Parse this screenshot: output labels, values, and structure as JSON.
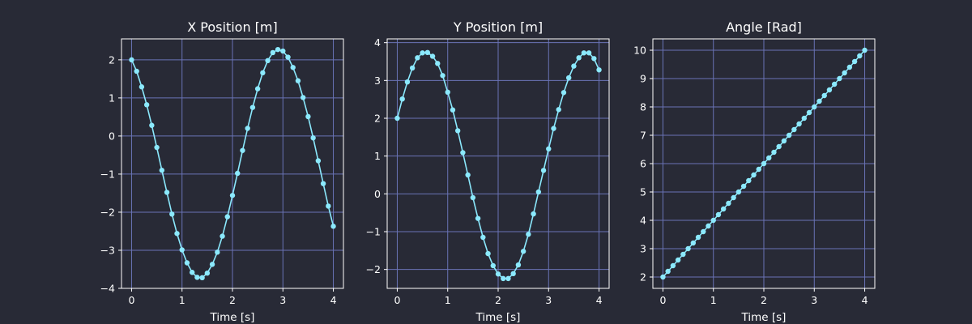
{
  "figure": {
    "background": "#282a36",
    "line_color": "#8be9fd",
    "grid_color": "#6a73b6",
    "text_color": "#ffffff"
  },
  "chart_data": [
    {
      "type": "line",
      "title": "X Position [m]",
      "xlabel": "Time [s]",
      "ylabel": "",
      "xlim": [
        -0.2,
        4.2
      ],
      "ylim": [
        -4.0,
        2.55
      ],
      "xticks": [
        0,
        1,
        2,
        3,
        4
      ],
      "xtick_labels": [
        "0",
        "1",
        "2",
        "3",
        "4"
      ],
      "yticks": [
        -4,
        -3,
        -2,
        -1,
        0,
        1,
        2
      ],
      "ytick_labels": [
        "−4",
        "−3",
        "−2",
        "−1",
        "0",
        "1",
        "2"
      ],
      "grid": true,
      "markers": true,
      "series": [
        {
          "x": [
            0.0,
            0.1,
            0.2,
            0.3,
            0.4,
            0.5,
            0.6,
            0.7,
            0.8,
            0.9,
            1.0,
            1.1,
            1.2,
            1.3,
            1.4,
            1.5,
            1.6,
            1.7,
            1.8,
            1.9,
            2.0,
            2.1,
            2.2,
            2.3,
            2.4,
            2.5,
            2.6,
            2.7,
            2.8,
            2.9,
            3.0,
            3.1,
            3.2,
            3.3,
            3.4,
            3.5,
            3.6,
            3.7,
            3.8,
            3.9,
            4.0
          ],
          "values": [
            2.0,
            1.7,
            1.29,
            0.82,
            0.28,
            -0.3,
            -0.9,
            -1.48,
            -2.05,
            -2.56,
            -2.99,
            -3.33,
            -3.58,
            -3.71,
            -3.72,
            -3.6,
            -3.37,
            -3.05,
            -2.63,
            -2.12,
            -1.56,
            -0.98,
            -0.38,
            0.2,
            0.75,
            1.24,
            1.66,
            1.98,
            2.19,
            2.27,
            2.23,
            2.07,
            1.8,
            1.45,
            1.01,
            0.51,
            -0.05,
            -0.65,
            -1.25,
            -1.84,
            -2.37
          ]
        }
      ]
    },
    {
      "type": "line",
      "title": "Y Position [m]",
      "xlabel": "Time [s]",
      "ylabel": "",
      "xlim": [
        -0.2,
        4.2
      ],
      "ylim": [
        -2.5,
        4.1
      ],
      "xticks": [
        0,
        1,
        2,
        3,
        4
      ],
      "xtick_labels": [
        "0",
        "1",
        "2",
        "3",
        "4"
      ],
      "yticks": [
        -2,
        -1,
        0,
        1,
        2,
        3,
        4
      ],
      "ytick_labels": [
        "−2",
        "−1",
        "0",
        "1",
        "2",
        "3",
        "4"
      ],
      "grid": true,
      "markers": true,
      "series": [
        {
          "x": [
            0.0,
            0.1,
            0.2,
            0.3,
            0.4,
            0.5,
            0.6,
            0.7,
            0.8,
            0.9,
            1.0,
            1.1,
            1.2,
            1.3,
            1.4,
            1.5,
            1.6,
            1.7,
            1.8,
            1.9,
            2.0,
            2.1,
            2.2,
            2.3,
            2.4,
            2.5,
            2.6,
            2.7,
            2.8,
            2.9,
            3.0,
            3.1,
            3.2,
            3.3,
            3.4,
            3.5,
            3.6,
            3.7,
            3.8,
            3.9,
            4.0
          ],
          "values": [
            2.0,
            2.51,
            2.96,
            3.33,
            3.6,
            3.73,
            3.74,
            3.64,
            3.45,
            3.13,
            2.69,
            2.22,
            1.67,
            1.09,
            0.5,
            -0.1,
            -0.65,
            -1.15,
            -1.58,
            -1.9,
            -2.12,
            -2.24,
            -2.24,
            -2.11,
            -1.88,
            -1.52,
            -1.07,
            -0.53,
            0.05,
            0.62,
            1.19,
            1.73,
            2.23,
            2.68,
            3.07,
            3.38,
            3.6,
            3.73,
            3.73,
            3.58,
            3.28
          ]
        }
      ]
    },
    {
      "type": "line",
      "title": "Angle [Rad]",
      "xlabel": "Time [s]",
      "ylabel": "",
      "xlim": [
        -0.2,
        4.2
      ],
      "ylim": [
        1.6,
        10.4
      ],
      "xticks": [
        0,
        1,
        2,
        3,
        4
      ],
      "xtick_labels": [
        "0",
        "1",
        "2",
        "3",
        "4"
      ],
      "yticks": [
        2,
        3,
        4,
        5,
        6,
        7,
        8,
        9,
        10
      ],
      "ytick_labels": [
        "2",
        "3",
        "4",
        "5",
        "6",
        "7",
        "8",
        "9",
        "10"
      ],
      "grid": true,
      "markers": true,
      "series": [
        {
          "x": [
            0.0,
            0.1,
            0.2,
            0.3,
            0.4,
            0.5,
            0.6,
            0.7,
            0.8,
            0.9,
            1.0,
            1.1,
            1.2,
            1.3,
            1.4,
            1.5,
            1.6,
            1.7,
            1.8,
            1.9,
            2.0,
            2.1,
            2.2,
            2.3,
            2.4,
            2.5,
            2.6,
            2.7,
            2.8,
            2.9,
            3.0,
            3.1,
            3.2,
            3.3,
            3.4,
            3.5,
            3.6,
            3.7,
            3.8,
            3.9,
            4.0
          ],
          "values": [
            2.0,
            2.2,
            2.4,
            2.6,
            2.8,
            3.0,
            3.2,
            3.4,
            3.6,
            3.8,
            4.0,
            4.2,
            4.4,
            4.6,
            4.8,
            5.0,
            5.2,
            5.4,
            5.6,
            5.8,
            6.0,
            6.2,
            6.4,
            6.6,
            6.8,
            7.0,
            7.2,
            7.4,
            7.6,
            7.8,
            8.0,
            8.2,
            8.4,
            8.6,
            8.8,
            9.0,
            9.2,
            9.4,
            9.6,
            9.8,
            10.0
          ]
        }
      ]
    }
  ]
}
